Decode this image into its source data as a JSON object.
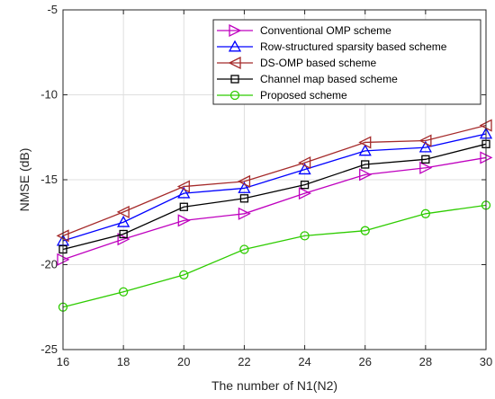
{
  "chart_data": {
    "type": "line",
    "xlabel": "The number of N1(N2)",
    "ylabel": "NMSE (dB)",
    "xlim": [
      16,
      30
    ],
    "ylim": [
      -25,
      -5
    ],
    "xticks": [
      16,
      18,
      20,
      22,
      24,
      26,
      28,
      30
    ],
    "yticks": [
      -5,
      -10,
      -15,
      -20,
      -25
    ],
    "grid": true,
    "legend_position": "top-right",
    "x": [
      16,
      18,
      20,
      22,
      24,
      26,
      28,
      30
    ],
    "series": [
      {
        "name": "Conventional OMP scheme",
        "color": "#bf00bf",
        "marker": "triangle-right",
        "values": [
          -19.7,
          -18.5,
          -17.4,
          -17.0,
          -15.8,
          -14.7,
          -14.3,
          -13.7
        ]
      },
      {
        "name": "Row-structured sparsity based scheme",
        "color": "#0000ff",
        "marker": "triangle-up",
        "values": [
          -18.6,
          -17.5,
          -15.8,
          -15.5,
          -14.4,
          -13.3,
          -13.1,
          -12.3
        ]
      },
      {
        "name": "DS-OMP based scheme",
        "color": "#a52a2a",
        "marker": "triangle-left",
        "values": [
          -18.3,
          -16.9,
          -15.4,
          -15.1,
          -14.0,
          -12.8,
          -12.7,
          -11.8
        ]
      },
      {
        "name": "Channel map based scheme",
        "color": "#000000",
        "marker": "square",
        "values": [
          -19.1,
          -18.2,
          -16.6,
          -16.1,
          -15.3,
          -14.1,
          -13.8,
          -12.9
        ]
      },
      {
        "name": "Proposed scheme",
        "color": "#2ecc00",
        "marker": "circle",
        "values": [
          -22.5,
          -21.6,
          -20.6,
          -19.1,
          -18.3,
          -18.0,
          -17.0,
          -16.5
        ]
      }
    ]
  }
}
